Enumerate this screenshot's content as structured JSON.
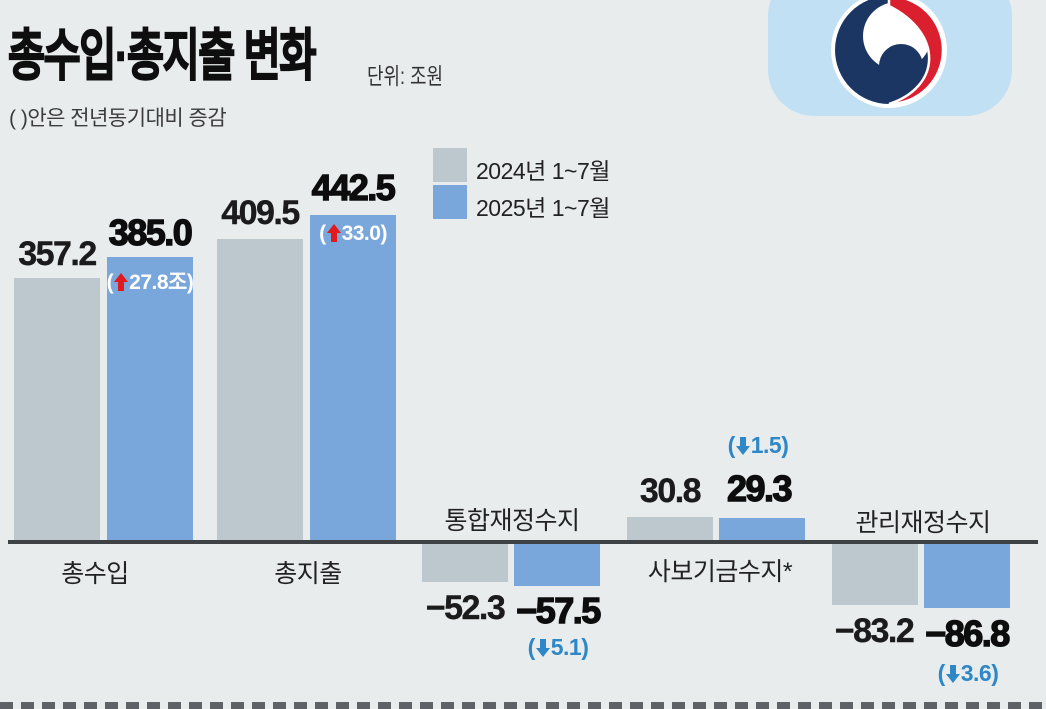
{
  "meta": {
    "title": "총수입·총지출 변화",
    "unit": "단위: 조원",
    "note": "( )안은 전년동기대비 증감"
  },
  "legend": [
    {
      "label": "2024년 1~7월",
      "color": "#bcc7ce"
    },
    {
      "label": "2025년 1~7월",
      "color": "#7aa7db"
    }
  ],
  "symbols": {
    "open": "(",
    "close": ")"
  },
  "groups": [
    {
      "label": "총수입",
      "prev": "357.2",
      "curr": "385.0",
      "change": "27.8조",
      "direction": "up"
    },
    {
      "label": "총지출",
      "prev": "409.5",
      "curr": "442.5",
      "change": "33.0",
      "direction": "up"
    },
    {
      "label": "통합재정수지",
      "prev": "−52.3",
      "curr": "−57.5",
      "change": "5.1",
      "direction": "down"
    },
    {
      "label": "사보기금수지*",
      "prev": "30.8",
      "curr": "29.3",
      "change": "1.5",
      "direction": "down"
    },
    {
      "label": "관리재정수지",
      "prev": "−83.2",
      "curr": "−86.8",
      "change": "3.6",
      "direction": "down"
    }
  ],
  "chart_data": {
    "type": "bar",
    "unit": "조원",
    "title": "총수입·총지출 변화",
    "categories": [
      "총수입",
      "총지출",
      "통합재정수지",
      "사보기금수지*",
      "관리재정수지"
    ],
    "series": [
      {
        "name": "2024년 1~7월",
        "color": "#bcc7ce",
        "values": [
          357.2,
          409.5,
          -52.3,
          30.8,
          -83.2
        ]
      },
      {
        "name": "2025년 1~7월",
        "color": "#7aa7db",
        "values": [
          385.0,
          442.5,
          -57.5,
          29.3,
          -86.8
        ]
      }
    ],
    "changes_vs_prev_year": [
      27.8,
      33.0,
      -5.1,
      -1.5,
      -3.6
    ],
    "baseline": 0,
    "grid": false,
    "legend_position": "top-center",
    "axis_line_color": "#3e4245"
  },
  "colors": {
    "background": "#e8eced",
    "bar_2024": "#bcc7ce",
    "bar_2025": "#7aa7db",
    "up_arrow": "#e2191d",
    "down_arrow": "#2e87c6",
    "logo_background": "#c2e0f4",
    "logo_navy": "#1c3664",
    "logo_red": "#da1f2e"
  }
}
